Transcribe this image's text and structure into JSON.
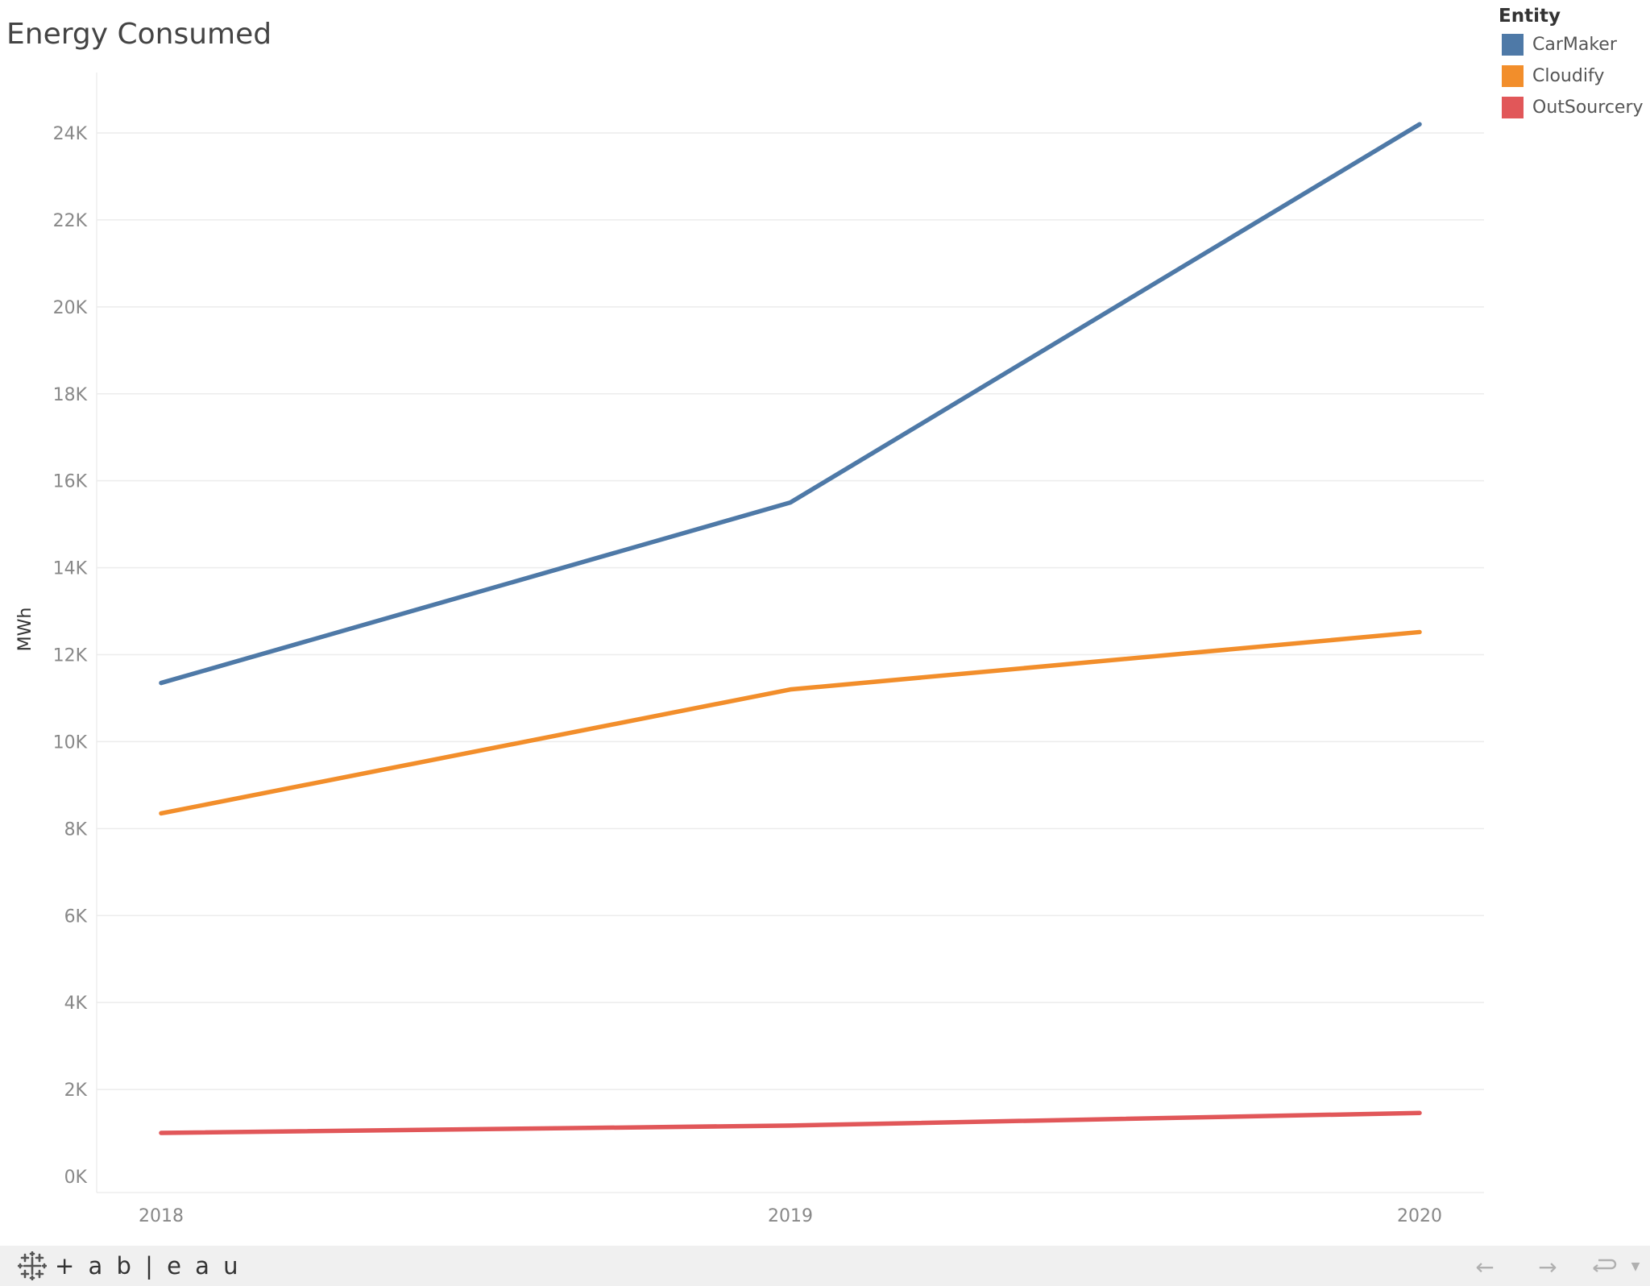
{
  "chart_data": {
    "type": "line",
    "title": "Energy Consumed",
    "ylabel": "MWh",
    "xlabel": "",
    "x": [
      "2018",
      "2019",
      "2020"
    ],
    "ylim": [
      0,
      25000
    ],
    "yticks": [
      0,
      2000,
      4000,
      6000,
      8000,
      10000,
      12000,
      14000,
      16000,
      18000,
      20000,
      22000,
      24000
    ],
    "ytick_labels": [
      "0K",
      "2K",
      "4K",
      "6K",
      "8K",
      "10K",
      "12K",
      "14K",
      "16K",
      "18K",
      "20K",
      "22K",
      "24K"
    ],
    "grid": true,
    "legend": {
      "title": "Entity",
      "placement": "top-right"
    },
    "series": [
      {
        "name": "CarMaker",
        "color": "#4e79a7",
        "values": [
          11350,
          15500,
          24200
        ]
      },
      {
        "name": "Cloudify",
        "color": "#f28e2b",
        "values": [
          8350,
          11200,
          12520
        ]
      },
      {
        "name": "OutSourcery",
        "color": "#e15759",
        "values": [
          1000,
          1170,
          1460
        ]
      }
    ]
  },
  "footer": {
    "brand_name": "+ a b | e a u",
    "icons": [
      "tableau-logo-icon",
      "undo-arrow-icon",
      "redo-arrow-icon",
      "revert-icon",
      "dropdown-icon"
    ]
  }
}
